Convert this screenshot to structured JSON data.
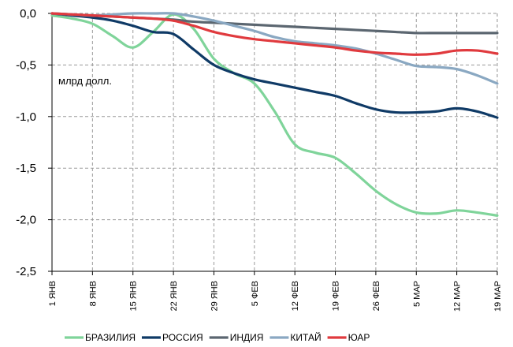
{
  "chart_data": {
    "type": "line",
    "title": "",
    "xlabel": "",
    "ylabel": "",
    "unit_label": "млрд долл.",
    "ylim": [
      -2.5,
      0.0
    ],
    "yticks": [
      0.0,
      -0.5,
      -1.0,
      -1.5,
      -2.0,
      -2.5
    ],
    "ytick_labels": [
      "0,0",
      "-0,5",
      "-1,0",
      "-1,5",
      "-2,0",
      "-2,5"
    ],
    "xticks": [
      "1 ЯНВ",
      "8 ЯНВ",
      "15 ЯНВ",
      "22 ЯНВ",
      "29 ЯНВ",
      "5 ФЕВ",
      "12 ФЕВ",
      "19 ФЕВ",
      "26 ФЕВ",
      "5 МАР",
      "12 МАР",
      "19 МАР"
    ],
    "grid": true,
    "legend_position": "bottom",
    "series": [
      {
        "name": "БРАЗИЛИЯ",
        "color": "#7fd49a",
        "x": [
          0,
          0.5,
          1,
          1.5,
          2,
          2.5,
          3,
          3.5,
          4,
          4.5,
          5,
          5.5,
          6,
          6.5,
          7,
          7.5,
          8,
          8.5,
          9,
          9.5,
          10,
          10.5,
          11
        ],
        "values": [
          -0.02,
          -0.05,
          -0.1,
          -0.22,
          -0.33,
          -0.18,
          -0.01,
          -0.15,
          -0.44,
          -0.58,
          -0.68,
          -0.95,
          -1.27,
          -1.35,
          -1.4,
          -1.55,
          -1.72,
          -1.85,
          -1.93,
          -1.94,
          -1.91,
          -1.93,
          -1.96
        ]
      },
      {
        "name": "РОССИЯ",
        "color": "#0f3a66",
        "x": [
          0,
          0.5,
          1,
          1.5,
          2,
          2.5,
          3,
          3.5,
          4,
          4.5,
          5,
          5.5,
          6,
          6.5,
          7,
          7.5,
          8,
          8.5,
          9,
          9.5,
          10,
          10.5,
          11
        ],
        "values": [
          0.0,
          -0.02,
          -0.04,
          -0.07,
          -0.12,
          -0.18,
          -0.2,
          -0.35,
          -0.5,
          -0.58,
          -0.64,
          -0.68,
          -0.72,
          -0.76,
          -0.8,
          -0.87,
          -0.93,
          -0.96,
          -0.96,
          -0.95,
          -0.92,
          -0.95,
          -1.01
        ]
      },
      {
        "name": "ИНДИЯ",
        "color": "#5b6670",
        "x": [
          0,
          0.5,
          1,
          1.5,
          2,
          2.5,
          3,
          3.5,
          4,
          4.5,
          5,
          5.5,
          6,
          6.5,
          7,
          7.5,
          8,
          8.5,
          9,
          9.5,
          10,
          10.5,
          11
        ],
        "values": [
          0.0,
          -0.01,
          -0.02,
          -0.03,
          -0.04,
          -0.05,
          -0.06,
          -0.08,
          -0.09,
          -0.1,
          -0.11,
          -0.12,
          -0.13,
          -0.14,
          -0.15,
          -0.16,
          -0.17,
          -0.18,
          -0.19,
          -0.19,
          -0.19,
          -0.19,
          -0.19
        ]
      },
      {
        "name": "КИТАЙ",
        "color": "#8aa8c2",
        "x": [
          0,
          0.5,
          1,
          1.5,
          2,
          2.5,
          3,
          3.5,
          4,
          4.5,
          5,
          5.5,
          6,
          6.5,
          7,
          7.5,
          8,
          8.5,
          9,
          9.5,
          10,
          10.5,
          11
        ],
        "values": [
          0.0,
          -0.01,
          -0.02,
          -0.01,
          0.0,
          0.0,
          0.0,
          -0.03,
          -0.07,
          -0.12,
          -0.17,
          -0.23,
          -0.27,
          -0.29,
          -0.31,
          -0.34,
          -0.39,
          -0.45,
          -0.51,
          -0.52,
          -0.54,
          -0.6,
          -0.68
        ]
      },
      {
        "name": "ЮАР",
        "color": "#e03a3e",
        "x": [
          0,
          0.5,
          1,
          1.5,
          2,
          2.5,
          3,
          3.5,
          4,
          4.5,
          5,
          5.5,
          6,
          6.5,
          7,
          7.5,
          8,
          8.5,
          9,
          9.5,
          10,
          10.5,
          11
        ],
        "values": [
          0.0,
          -0.01,
          -0.02,
          -0.03,
          -0.04,
          -0.05,
          -0.07,
          -0.12,
          -0.18,
          -0.22,
          -0.25,
          -0.27,
          -0.29,
          -0.31,
          -0.33,
          -0.36,
          -0.38,
          -0.39,
          -0.4,
          -0.39,
          -0.36,
          -0.36,
          -0.39
        ]
      }
    ]
  }
}
